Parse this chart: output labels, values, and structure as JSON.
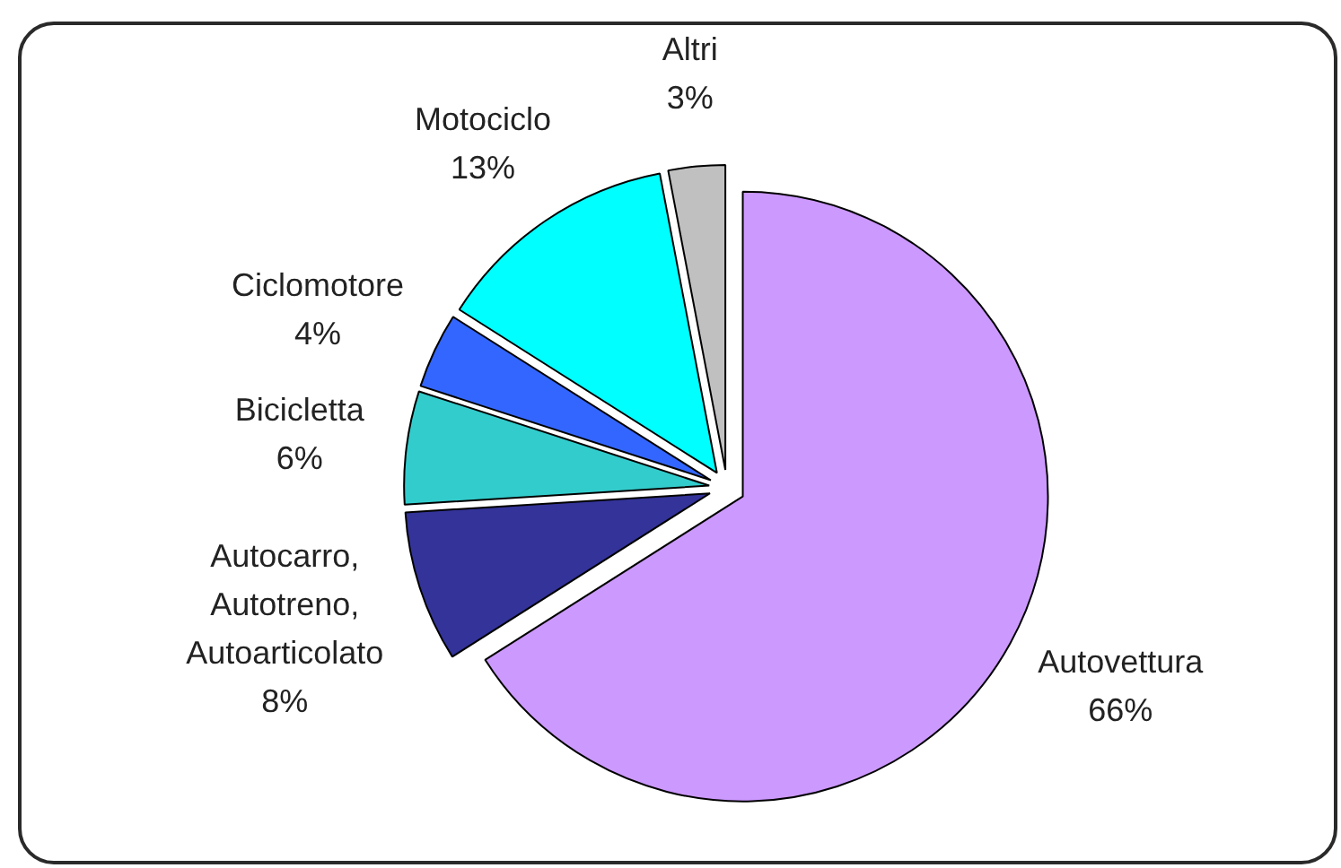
{
  "chart_data": {
    "type": "pie",
    "categories": [
      "Autovettura",
      "Autocarro, Autotreno, Autoarticolato",
      "Bicicletta",
      "Ciclomotore",
      "Motociclo",
      "Altri"
    ],
    "values": [
      66,
      8,
      6,
      4,
      13,
      3
    ],
    "colors": [
      "#cc99ff",
      "#333399",
      "#33cccc",
      "#3366ff",
      "#00ffff",
      "#c0c0c0"
    ],
    "value_labels": [
      "66%",
      "8%",
      "6%",
      "4%",
      "13%",
      "3%"
    ]
  }
}
